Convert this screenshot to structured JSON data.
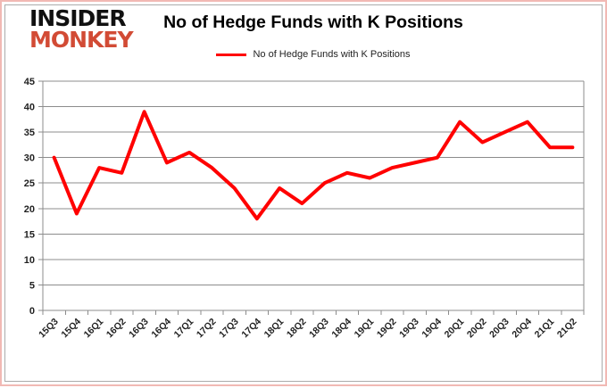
{
  "logo": {
    "line1": "INSIDER",
    "line2": "MONKEY",
    "color": "#d24b35"
  },
  "title": "No of Hedge Funds with K Positions",
  "legend": {
    "label": "No of Hedge Funds with K Positions",
    "color": "#ff0000"
  },
  "chart_data": {
    "type": "line",
    "title": "No of Hedge Funds with K Positions",
    "categories": [
      "15Q3",
      "15Q4",
      "16Q1",
      "16Q2",
      "16Q3",
      "16Q4",
      "17Q1",
      "17Q2",
      "17Q3",
      "17Q4",
      "18Q1",
      "18Q2",
      "18Q3",
      "18Q4",
      "19Q1",
      "19Q2",
      "19Q3",
      "19Q4",
      "20Q1",
      "20Q2",
      "20Q3",
      "20Q4",
      "21Q1",
      "21Q2"
    ],
    "series": [
      {
        "name": "No of Hedge Funds with K Positions",
        "color": "#ff0000",
        "values": [
          30,
          19,
          28,
          27,
          39,
          29,
          31,
          28,
          24,
          18,
          24,
          21,
          25,
          27,
          26,
          28,
          29,
          30,
          37,
          33,
          35,
          37,
          32,
          32
        ]
      }
    ],
    "xlabel": "",
    "ylabel": "",
    "ylim": [
      0,
      45
    ],
    "yticks": [
      0,
      5,
      10,
      15,
      20,
      25,
      30,
      35,
      40,
      45
    ],
    "grid": true,
    "legend_position": "top",
    "grid_color": "#8c8c8c",
    "label_color": "#1f1f1f"
  }
}
